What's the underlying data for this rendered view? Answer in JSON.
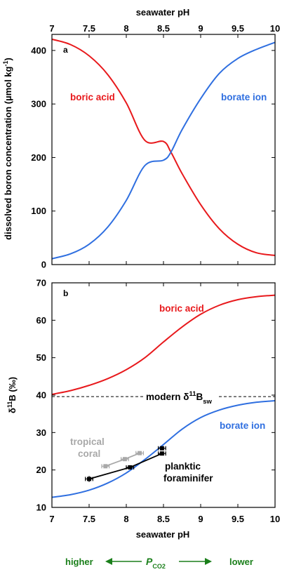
{
  "chart_data": [
    {
      "panel": "a",
      "type": "line",
      "xlabel_top": "seawater pH",
      "ylabel": "dissolved boron concentration (µmol kg",
      "ylabel_sup": "-1",
      "ylabel_close": ")",
      "xlim": [
        7,
        10
      ],
      "ylim": [
        0,
        430
      ],
      "xticks": [
        7,
        7.5,
        8,
        8.5,
        9,
        9.5,
        10
      ],
      "xtick_labels": [
        "7",
        "7.5",
        "8",
        "8.5",
        "9",
        "9.5",
        "10"
      ],
      "yticks": [
        0,
        100,
        200,
        300,
        400
      ],
      "ytick_labels": [
        "0",
        "100",
        "200",
        "300",
        "400"
      ],
      "x": [
        7.0,
        7.25,
        7.5,
        7.75,
        8.0,
        8.25,
        8.5,
        8.6,
        8.75,
        9.0,
        9.25,
        9.5,
        9.75,
        10.0
      ],
      "series": [
        {
          "name": "boric acid",
          "color": "#e8191c",
          "values": [
            421,
            411,
            390,
            355,
            302,
            232,
            230,
            210,
            170,
            112,
            67,
            38,
            22,
            17
          ]
        },
        {
          "name": "borate ion",
          "color": "#2f6fe0",
          "values": [
            11,
            20,
            38,
            70,
            120,
            185,
            195,
            210,
            252,
            310,
            357,
            385,
            402,
            415
          ]
        }
      ]
    },
    {
      "panel": "b",
      "type": "line",
      "xlabel": "seawater pH",
      "ylabel_main": "δ",
      "ylabel_sup": "11",
      "ylabel_rest": "B (‰)",
      "xlim": [
        7,
        10
      ],
      "ylim": [
        10,
        70
      ],
      "xticks": [
        7,
        7.5,
        8,
        8.5,
        9,
        9.5,
        10
      ],
      "xtick_labels": [
        "7",
        "7.5",
        "8",
        "8.5",
        "9",
        "9.5",
        "10"
      ],
      "yticks": [
        10,
        20,
        30,
        40,
        50,
        60,
        70
      ],
      "ytick_labels": [
        "10",
        "20",
        "30",
        "40",
        "50",
        "60",
        "70"
      ],
      "x": [
        7.0,
        7.25,
        7.5,
        7.75,
        8.0,
        8.25,
        8.5,
        8.75,
        9.0,
        9.25,
        9.5,
        9.75,
        10.0
      ],
      "series": [
        {
          "name": "boric acid",
          "color": "#e8191c",
          "values": [
            40.2,
            41.2,
            42.6,
            44.4,
            46.8,
            50.0,
            54.2,
            58.2,
            61.6,
            64.0,
            65.5,
            66.3,
            66.7
          ]
        },
        {
          "name": "borate ion",
          "color": "#2f6fe0",
          "values": [
            12.7,
            13.4,
            14.6,
            16.5,
            19.2,
            22.8,
            26.8,
            30.9,
            34.0,
            36.0,
            37.3,
            38.1,
            38.5
          ]
        }
      ],
      "reference_line": {
        "label_main": "modern δ",
        "label_sup": "11",
        "label_b": "B",
        "label_sub": "sw",
        "value": 39.6
      },
      "data_series": [
        {
          "name": "tropical coral",
          "name_line1": "tropical",
          "name_line2": "coral",
          "color": "#a8a8a8",
          "points": [
            {
              "x": 7.72,
              "y": 21.0,
              "xerr": 0.05,
              "yerr": 0.4
            },
            {
              "x": 7.98,
              "y": 22.9,
              "xerr": 0.05,
              "yerr": 0.4
            },
            {
              "x": 8.18,
              "y": 24.5,
              "xerr": 0.05,
              "yerr": 0.4
            }
          ]
        },
        {
          "name": "planktic foraminifer",
          "name_line1": "planktic",
          "name_line2": "foraminifer",
          "color": "#000000",
          "points": [
            {
              "x": 7.5,
              "y": 17.6,
              "xerr": 0.05,
              "yerr": 0.8
            },
            {
              "x": 8.05,
              "y": 20.7,
              "xerr": 0.05,
              "yerr": 0.5
            },
            {
              "x": 8.48,
              "y": 24.4,
              "xerr": 0.05,
              "yerr": 0.5
            },
            {
              "x": 8.48,
              "y": 25.8,
              "xerr": 0.05,
              "yerr": 0.5
            }
          ]
        }
      ]
    }
  ],
  "footer": {
    "left": "higher",
    "center_main": "P",
    "center_sub": "CO2",
    "right": "lower",
    "color": "#1a7f1a"
  }
}
